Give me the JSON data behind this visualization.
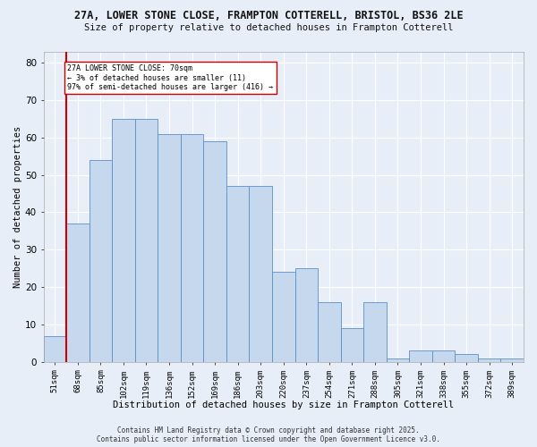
{
  "title1": "27A, LOWER STONE CLOSE, FRAMPTON COTTERELL, BRISTOL, BS36 2LE",
  "title2": "Size of property relative to detached houses in Frampton Cotterell",
  "xlabel": "Distribution of detached houses by size in Frampton Cotterell",
  "ylabel": "Number of detached properties",
  "categories": [
    "51sqm",
    "68sqm",
    "85sqm",
    "102sqm",
    "119sqm",
    "136sqm",
    "152sqm",
    "169sqm",
    "186sqm",
    "203sqm",
    "220sqm",
    "237sqm",
    "254sqm",
    "271sqm",
    "288sqm",
    "305sqm",
    "321sqm",
    "338sqm",
    "355sqm",
    "372sqm",
    "389sqm"
  ],
  "values": [
    7,
    37,
    54,
    65,
    65,
    61,
    61,
    59,
    47,
    47,
    24,
    25,
    16,
    9,
    16,
    1,
    3,
    3,
    2,
    1,
    1
  ],
  "bar_color": "#c5d8ed",
  "bar_edge_color": "#5b8fc5",
  "vline_color": "#cc0000",
  "vline_index": 0.5,
  "annotation_line1": "27A LOWER STONE CLOSE: 70sqm",
  "annotation_line2": "← 3% of detached houses are smaller (11)",
  "annotation_line3": "97% of semi-detached houses are larger (416) →",
  "ylim": [
    0,
    83
  ],
  "yticks": [
    0,
    10,
    20,
    30,
    40,
    50,
    60,
    70,
    80
  ],
  "footnote": "Contains HM Land Registry data © Crown copyright and database right 2025.\nContains public sector information licensed under the Open Government Licence v3.0.",
  "bg_color": "#e8eef8",
  "grid_color": "#ffffff"
}
